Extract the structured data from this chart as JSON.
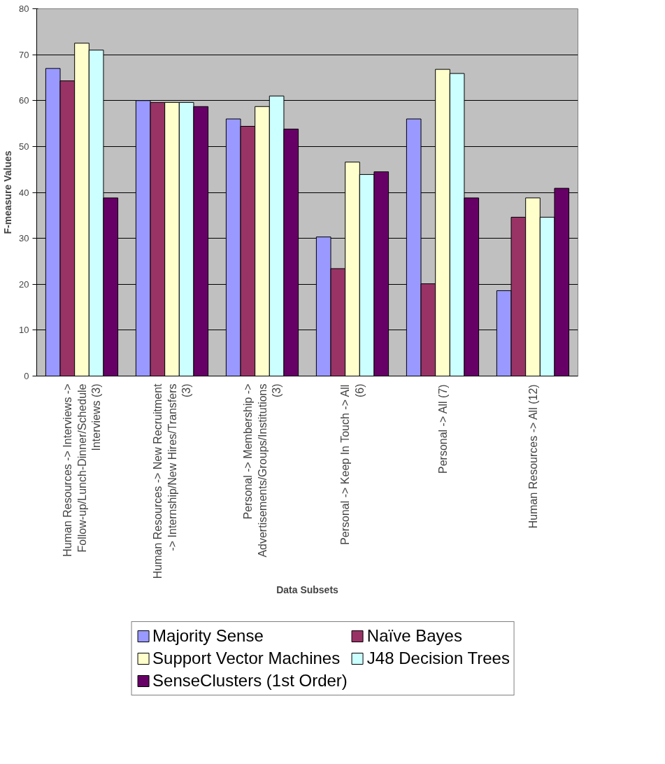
{
  "chart_data": {
    "type": "bar",
    "xlabel": "Data Subsets",
    "ylabel": "F-measure Values",
    "categories": [
      "Human Resources -> Interviews -> Follow-up/Lunch-Dinner/Schedule Interviews (3)",
      "Human Resources -> New Recruitment -> Internship/New Hires/Transfers (3)",
      "Personal -> Membership -> Advertisements/Groups/Institutions (3)",
      "Personal -> Keep In Touch -> All (6)",
      "Personal -> All (7)",
      "Human Resources -> All (12)"
    ],
    "series": [
      {
        "name": "Majority Sense",
        "color": "#9999ff",
        "values": [
          67,
          60,
          56,
          30.3,
          56,
          18.6
        ]
      },
      {
        "name": "Naïve Bayes",
        "color": "#993366",
        "values": [
          64.3,
          59.6,
          54.4,
          23.4,
          20.1,
          34.6
        ]
      },
      {
        "name": "Support Vector Machines",
        "color": "#ffffcc",
        "values": [
          72.5,
          59.6,
          58.7,
          46.6,
          66.8,
          38.8
        ]
      },
      {
        "name": "J48 Decision Trees",
        "color": "#ccffff",
        "values": [
          71,
          59.6,
          61,
          43.9,
          65.9,
          34.6
        ]
      },
      {
        "name": "SenseClusters (1st Order)",
        "color": "#660066",
        "values": [
          38.8,
          58.7,
          53.8,
          44.5,
          38.8,
          40.9
        ]
      }
    ],
    "ylim": [
      0,
      80
    ],
    "yticks": [
      0,
      10,
      20,
      30,
      40,
      50,
      60,
      70,
      80
    ],
    "grid": "y",
    "legend": "bottom"
  }
}
